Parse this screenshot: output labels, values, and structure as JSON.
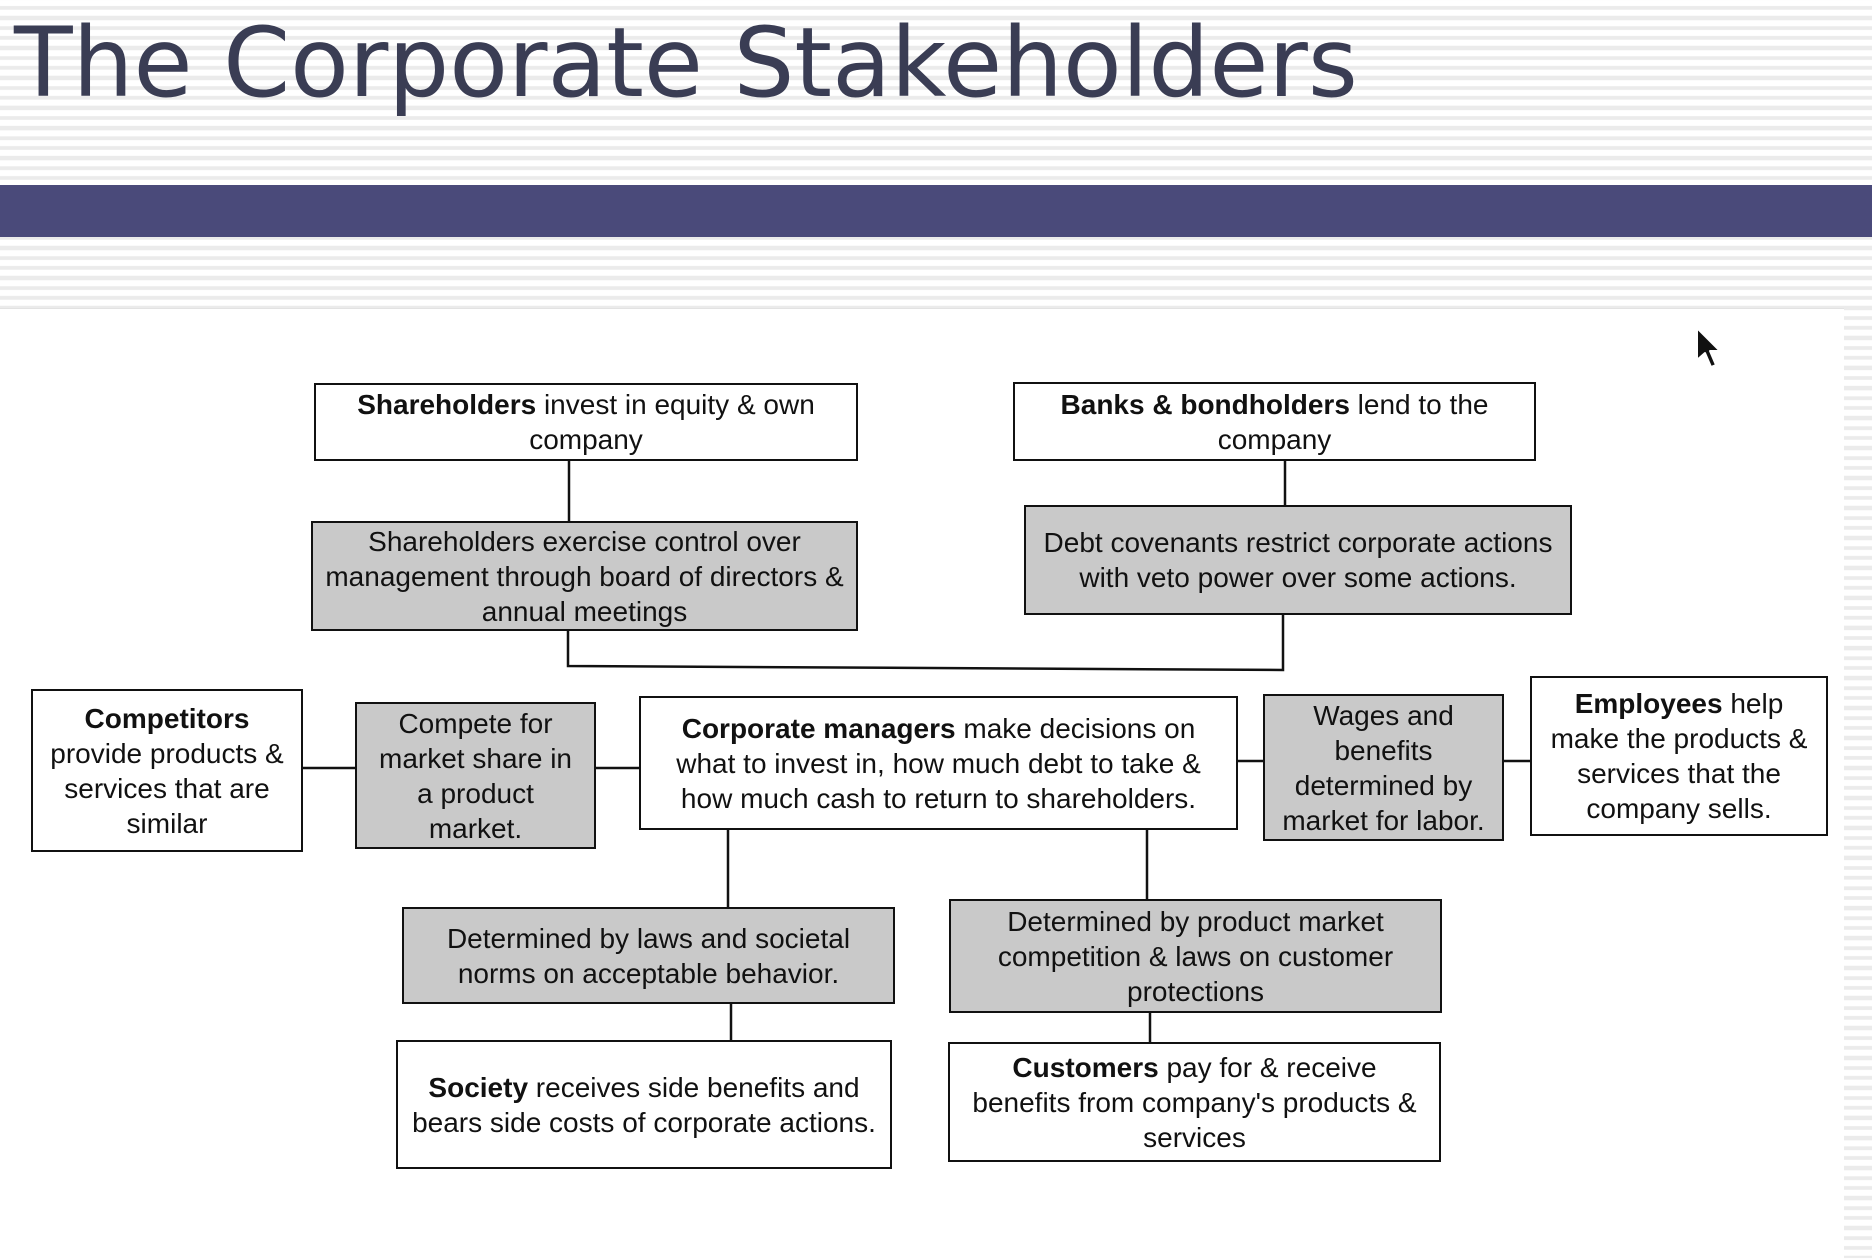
{
  "slide": {
    "title": "The Corporate Stakeholders",
    "accent_color": "#4a4a7a",
    "title_color": "#3a3d54"
  },
  "diagram": {
    "nodes": {
      "shareholders": {
        "bold": "Shareholders",
        "text": " invest in equity & own company"
      },
      "shareholder_control": {
        "text": "Shareholders exercise control over management through board of directors & annual meetings"
      },
      "banks": {
        "bold": "Banks & bondholders",
        "text": " lend to the company"
      },
      "debt_covenants": {
        "text": "Debt covenants restrict corporate actions with veto power over some actions."
      },
      "competitors": {
        "bold": "Competitors",
        "text": " provide products & services that are similar"
      },
      "compete_market_share": {
        "text": "Compete for market share in a product market."
      },
      "corporate_managers": {
        "bold": "Corporate managers",
        "text": " make decisions on what to invest in, how much debt to take & how much cash to return to shareholders."
      },
      "wages_benefits": {
        "text": "Wages and benefits determined by market for labor."
      },
      "employees": {
        "bold": "Employees",
        "text": " help make the products & services that the company sells."
      },
      "laws_norms": {
        "text": "Determined by laws and societal norms on acceptable behavior."
      },
      "product_market_competition": {
        "text": "Determined by product market competition & laws on customer protections"
      },
      "society": {
        "bold": "Society",
        "text": " receives side benefits and bears side costs of corporate actions."
      },
      "customers": {
        "bold": "Customers",
        "text": " pay for & receive benefits from  company's products & services"
      }
    },
    "colors": {
      "box_fill": "#ffffff",
      "shaded_fill": "#c9c9c9",
      "border": "#111111"
    }
  },
  "cursor": {
    "icon": "arrow-cursor-icon"
  }
}
